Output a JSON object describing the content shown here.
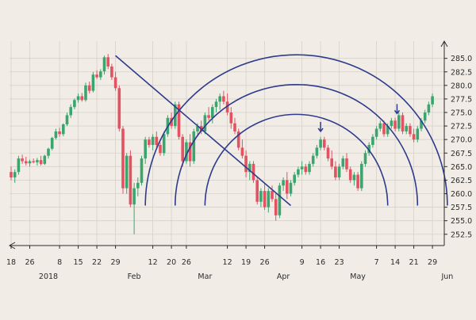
{
  "chart_data": {
    "type": "candlestick",
    "title": "",
    "xlabel": "",
    "ylabel": "",
    "ylim": [
      251.0,
      287.0
    ],
    "grid": true,
    "y_ticks": [
      "252.5",
      "255.0",
      "257.5",
      "260.0",
      "262.5",
      "265.0",
      "267.5",
      "270.0",
      "272.5",
      "275.0",
      "277.5",
      "280.0",
      "282.5",
      "285.0"
    ],
    "x_ticks": [
      {
        "label": "18",
        "row": "day",
        "idx": 0
      },
      {
        "label": "26",
        "row": "day",
        "idx": 5
      },
      {
        "label": "8",
        "row": "day",
        "idx": 13
      },
      {
        "label": "15",
        "row": "day",
        "idx": 18
      },
      {
        "label": "22",
        "row": "day",
        "idx": 23
      },
      {
        "label": "29",
        "row": "day",
        "idx": 28
      },
      {
        "label": "12",
        "row": "day",
        "idx": 38
      },
      {
        "label": "20",
        "row": "day",
        "idx": 43
      },
      {
        "label": "26",
        "row": "day",
        "idx": 47
      },
      {
        "label": "12",
        "row": "day",
        "idx": 58
      },
      {
        "label": "19",
        "row": "day",
        "idx": 63
      },
      {
        "label": "26",
        "row": "day",
        "idx": 68
      },
      {
        "label": "9",
        "row": "day",
        "idx": 78
      },
      {
        "label": "16",
        "row": "day",
        "idx": 83
      },
      {
        "label": "23",
        "row": "day",
        "idx": 88
      },
      {
        "label": "7",
        "row": "day",
        "idx": 98
      },
      {
        "label": "14",
        "row": "day",
        "idx": 103
      },
      {
        "label": "21",
        "row": "day",
        "idx": 108
      },
      {
        "label": "29",
        "row": "day",
        "idx": 113
      },
      {
        "label": "2018",
        "row": "month",
        "idx": 10
      },
      {
        "label": "Feb",
        "row": "month",
        "idx": 33
      },
      {
        "label": "Mar",
        "row": "month",
        "idx": 52
      },
      {
        "label": "Apr",
        "row": "month",
        "idx": 73
      },
      {
        "label": "May",
        "row": "month",
        "idx": 93
      },
      {
        "label": "Jun",
        "row": "month",
        "idx": 117
      }
    ],
    "candles": [
      [
        264.0,
        265.0,
        262.5,
        263.0
      ],
      [
        263.0,
        264.5,
        262.0,
        264.0
      ],
      [
        264.0,
        267.0,
        263.5,
        266.5
      ],
      [
        266.5,
        267.2,
        265.5,
        266.0
      ],
      [
        266.0,
        266.8,
        265.2,
        265.6
      ],
      [
        265.6,
        266.3,
        265.0,
        266.0
      ],
      [
        266.0,
        266.5,
        265.6,
        265.8
      ],
      [
        265.8,
        266.6,
        265.2,
        266.2
      ],
      [
        266.2,
        267.0,
        265.2,
        265.5
      ],
      [
        265.5,
        267.2,
        265.3,
        267.0
      ],
      [
        267.0,
        268.5,
        266.5,
        268.3
      ],
      [
        268.3,
        270.5,
        268.0,
        270.3
      ],
      [
        270.3,
        272.0,
        270.0,
        271.5
      ],
      [
        271.5,
        272.2,
        270.5,
        271.0
      ],
      [
        271.0,
        273.0,
        270.6,
        272.8
      ],
      [
        272.8,
        275.0,
        272.5,
        274.5
      ],
      [
        274.5,
        276.5,
        274.0,
        276.0
      ],
      [
        276.0,
        277.6,
        275.6,
        277.3
      ],
      [
        277.3,
        278.5,
        276.8,
        278.0
      ],
      [
        278.0,
        278.6,
        277.0,
        277.3
      ],
      [
        277.3,
        280.5,
        277.0,
        280.0
      ],
      [
        280.0,
        280.7,
        278.5,
        279.0
      ],
      [
        279.0,
        282.5,
        278.7,
        282.0
      ],
      [
        282.0,
        282.8,
        281.2,
        281.5
      ],
      [
        281.5,
        283.0,
        281.0,
        282.6
      ],
      [
        282.6,
        285.5,
        282.0,
        285.2
      ],
      [
        285.2,
        285.8,
        283.0,
        283.5
      ],
      [
        283.5,
        284.0,
        281.0,
        281.5
      ],
      [
        281.5,
        282.5,
        279.0,
        279.5
      ],
      [
        279.5,
        280.0,
        271.5,
        272.0
      ],
      [
        272.0,
        272.5,
        260.0,
        261.0
      ],
      [
        261.0,
        267.5,
        260.0,
        267.0
      ],
      [
        267.0,
        268.0,
        257.5,
        258.0
      ],
      [
        258.0,
        262.0,
        252.5,
        261.0
      ],
      [
        261.0,
        263.0,
        259.5,
        262.0
      ],
      [
        262.0,
        267.0,
        261.5,
        266.5
      ],
      [
        266.5,
        270.5,
        265.5,
        270.0
      ],
      [
        270.0,
        270.5,
        268.5,
        269.0
      ],
      [
        269.0,
        271.0,
        268.0,
        270.5
      ],
      [
        270.5,
        271.5,
        268.5,
        269.0
      ],
      [
        269.0,
        269.5,
        267.0,
        267.5
      ],
      [
        267.5,
        271.5,
        267.0,
        271.0
      ],
      [
        271.0,
        274.5,
        270.5,
        274.0
      ],
      [
        274.0,
        275.0,
        272.0,
        272.5
      ],
      [
        272.5,
        277.0,
        272.0,
        276.5
      ],
      [
        276.5,
        277.0,
        270.0,
        270.5
      ],
      [
        270.5,
        271.0,
        265.0,
        266.0
      ],
      [
        266.0,
        270.0,
        265.5,
        269.5
      ],
      [
        269.5,
        271.0,
        265.0,
        266.0
      ],
      [
        266.0,
        272.0,
        265.5,
        271.5
      ],
      [
        271.5,
        273.0,
        270.5,
        272.5
      ],
      [
        272.5,
        273.5,
        271.0,
        271.5
      ],
      [
        271.5,
        275.0,
        271.0,
        274.5
      ],
      [
        274.5,
        276.0,
        273.5,
        274.0
      ],
      [
        274.0,
        276.5,
        273.0,
        276.0
      ],
      [
        276.0,
        277.5,
        275.0,
        277.0
      ],
      [
        277.0,
        278.5,
        275.5,
        278.0
      ],
      [
        278.0,
        279.0,
        276.5,
        277.0
      ],
      [
        277.0,
        278.5,
        274.5,
        275.0
      ],
      [
        275.0,
        276.0,
        272.0,
        273.0
      ],
      [
        273.0,
        274.0,
        271.0,
        271.5
      ],
      [
        271.5,
        272.0,
        268.0,
        268.5
      ],
      [
        268.5,
        270.0,
        266.5,
        267.0
      ],
      [
        267.0,
        268.0,
        263.0,
        264.0
      ],
      [
        264.0,
        266.0,
        262.5,
        265.5
      ],
      [
        265.5,
        266.0,
        262.0,
        262.5
      ],
      [
        262.5,
        263.0,
        258.0,
        258.5
      ],
      [
        258.5,
        261.0,
        257.5,
        260.5
      ],
      [
        260.5,
        262.0,
        257.0,
        257.5
      ],
      [
        257.5,
        261.0,
        256.5,
        260.5
      ],
      [
        260.5,
        261.5,
        258.5,
        259.0
      ],
      [
        259.0,
        260.0,
        255.0,
        256.0
      ],
      [
        256.0,
        262.0,
        255.5,
        261.5
      ],
      [
        261.5,
        263.0,
        260.5,
        262.5
      ],
      [
        262.5,
        264.0,
        259.0,
        260.0
      ],
      [
        260.0,
        262.5,
        259.5,
        262.0
      ],
      [
        262.0,
        264.0,
        261.5,
        263.5
      ],
      [
        263.5,
        265.0,
        263.0,
        264.5
      ],
      [
        264.5,
        266.0,
        263.5,
        265.0
      ],
      [
        265.0,
        265.5,
        263.5,
        264.0
      ],
      [
        264.0,
        266.0,
        263.5,
        265.5
      ],
      [
        265.5,
        267.5,
        265.0,
        267.0
      ],
      [
        267.0,
        269.0,
        266.5,
        268.5
      ],
      [
        268.5,
        270.5,
        268.0,
        270.0
      ],
      [
        270.0,
        270.5,
        268.0,
        268.5
      ],
      [
        268.5,
        269.0,
        266.0,
        266.5
      ],
      [
        266.5,
        268.0,
        264.5,
        265.0
      ],
      [
        265.0,
        266.0,
        262.5,
        263.0
      ],
      [
        263.0,
        265.5,
        262.5,
        265.0
      ],
      [
        265.0,
        267.0,
        264.5,
        266.5
      ],
      [
        266.5,
        267.5,
        264.0,
        264.5
      ],
      [
        264.5,
        265.0,
        262.0,
        262.5
      ],
      [
        262.5,
        264.0,
        261.5,
        263.5
      ],
      [
        263.5,
        264.0,
        260.5,
        261.0
      ],
      [
        261.0,
        266.0,
        260.5,
        265.5
      ],
      [
        265.5,
        268.0,
        265.0,
        267.5
      ],
      [
        267.5,
        269.5,
        267.0,
        269.0
      ],
      [
        269.0,
        271.0,
        268.5,
        270.5
      ],
      [
        270.5,
        272.5,
        270.0,
        272.0
      ],
      [
        272.0,
        273.5,
        271.5,
        273.0
      ],
      [
        273.0,
        273.5,
        270.5,
        271.0
      ],
      [
        271.0,
        273.0,
        270.5,
        272.5
      ],
      [
        272.5,
        274.0,
        272.0,
        273.5
      ],
      [
        273.5,
        274.0,
        271.5,
        272.0
      ],
      [
        272.0,
        275.0,
        271.5,
        274.5
      ],
      [
        274.5,
        275.0,
        271.0,
        271.5
      ],
      [
        271.5,
        273.0,
        271.0,
        272.5
      ],
      [
        272.5,
        273.0,
        270.5,
        271.0
      ],
      [
        271.0,
        272.0,
        269.5,
        270.0
      ],
      [
        270.0,
        272.5,
        269.5,
        272.0
      ],
      [
        272.0,
        274.0,
        271.5,
        273.5
      ],
      [
        273.5,
        275.5,
        273.0,
        275.0
      ],
      [
        275.0,
        277.0,
        274.5,
        276.5
      ],
      [
        276.5,
        278.5,
        276.0,
        278.0
      ]
    ],
    "trendline": {
      "from": {
        "idx": 28,
        "price": 285.5
      },
      "to": {
        "idx": 75,
        "price": 257.8
      }
    },
    "arcs": [
      {
        "center_idx": 76.5,
        "center_price": 257.8,
        "radius_idx": 40.5
      },
      {
        "center_idx": 76.5,
        "center_price": 257.8,
        "radius_idx": 32.5
      },
      {
        "center_idx": 76.5,
        "center_price": 257.8,
        "radius_idx": 24.5
      }
    ],
    "markers": [
      {
        "type": "down-arrow",
        "idx": 83,
        "price": 271.5
      },
      {
        "type": "down-arrow",
        "idx": 103.5,
        "price": 274.8
      }
    ],
    "colors": {
      "background": "#f1ede6",
      "up": "#3aa66e",
      "down": "#e25260",
      "lines": "#2e3a8c",
      "grid": "#d6d1c8",
      "axis": "#2b2b2b"
    }
  }
}
